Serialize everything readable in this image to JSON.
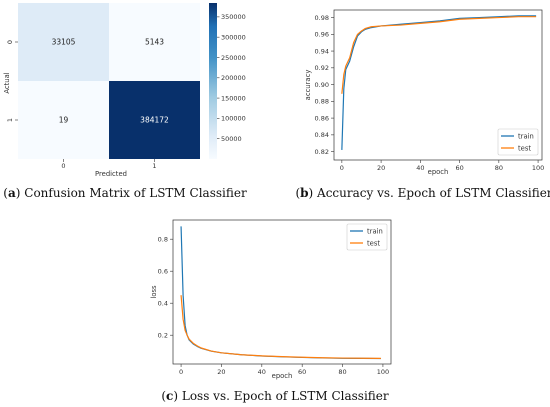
{
  "colors": {
    "heat_light": "#f7fbff",
    "heat_mid1": "#deebf7",
    "heat_mid2": "#6baed6",
    "heat_dark": "#08306b",
    "train": "#1f77b4",
    "test": "#ff7f0e"
  },
  "chart_data": [
    {
      "type": "heatmap",
      "caption": {
        "tag": "a",
        "text": "Confusion Matrix of LSTM Classifier"
      },
      "xlabel": "Predicted",
      "ylabel": "Actual",
      "x_categories": [
        "0",
        "1"
      ],
      "y_categories": [
        "0",
        "1"
      ],
      "values": [
        [
          33105,
          5143
        ],
        [
          19,
          384172
        ]
      ],
      "colorbar": {
        "range": [
          0,
          384172
        ],
        "ticks": [
          50000,
          100000,
          150000,
          200000,
          250000,
          300000,
          350000
        ]
      }
    },
    {
      "type": "line",
      "caption": {
        "tag": "b",
        "text": "Accuracy vs. Epoch of LSTM Classifier"
      },
      "xlabel": "epoch",
      "ylabel": "accuracy",
      "xlim": [
        -4,
        102
      ],
      "ylim": [
        0.81,
        0.989
      ],
      "xticks": [
        0,
        20,
        40,
        60,
        80,
        100
      ],
      "yticks": [
        0.82,
        0.84,
        0.86,
        0.88,
        0.9,
        0.92,
        0.94,
        0.96,
        0.98
      ],
      "ytick_labels": [
        "0.82",
        "0.84",
        "0.86",
        "0.88",
        "0.90",
        "0.92",
        "0.94",
        "0.96",
        "0.98"
      ],
      "legend_position": "bottom-right",
      "series": [
        {
          "name": "train",
          "color_key": "train",
          "x": [
            0,
            1,
            2,
            4,
            6,
            8,
            10,
            12,
            15,
            20,
            30,
            40,
            50,
            60,
            70,
            80,
            90,
            99
          ],
          "y": [
            0.822,
            0.895,
            0.918,
            0.928,
            0.945,
            0.958,
            0.963,
            0.966,
            0.968,
            0.97,
            0.972,
            0.974,
            0.976,
            0.979,
            0.98,
            0.981,
            0.982,
            0.982
          ]
        },
        {
          "name": "test",
          "color_key": "test",
          "x": [
            0,
            1,
            2,
            4,
            6,
            8,
            10,
            12,
            15,
            20,
            30,
            40,
            50,
            60,
            70,
            80,
            90,
            99
          ],
          "y": [
            0.889,
            0.912,
            0.922,
            0.932,
            0.95,
            0.96,
            0.964,
            0.967,
            0.969,
            0.97,
            0.971,
            0.973,
            0.975,
            0.978,
            0.979,
            0.98,
            0.981,
            0.981
          ]
        }
      ]
    },
    {
      "type": "line",
      "caption": {
        "tag": "c",
        "text": "Loss vs. Epoch of LSTM Classifier"
      },
      "xlabel": "epoch",
      "ylabel": "loss",
      "xlim": [
        -4,
        104
      ],
      "ylim": [
        0.02,
        0.92
      ],
      "xticks": [
        0,
        20,
        40,
        60,
        80,
        100
      ],
      "yticks": [
        0.2,
        0.4,
        0.6,
        0.8
      ],
      "ytick_labels": [
        "0.2",
        "0.4",
        "0.6",
        "0.8"
      ],
      "legend_position": "top-right",
      "series": [
        {
          "name": "train",
          "color_key": "train",
          "x": [
            0,
            1,
            2,
            3,
            4,
            6,
            8,
            10,
            15,
            20,
            30,
            40,
            50,
            60,
            70,
            80,
            90,
            99
          ],
          "y": [
            0.88,
            0.45,
            0.26,
            0.2,
            0.17,
            0.145,
            0.13,
            0.118,
            0.1,
            0.09,
            0.078,
            0.07,
            0.065,
            0.061,
            0.058,
            0.056,
            0.055,
            0.054
          ]
        },
        {
          "name": "test",
          "color_key": "test",
          "x": [
            0,
            1,
            2,
            3,
            4,
            6,
            8,
            10,
            15,
            20,
            30,
            40,
            50,
            60,
            70,
            80,
            90,
            99
          ],
          "y": [
            0.45,
            0.3,
            0.23,
            0.2,
            0.175,
            0.15,
            0.133,
            0.12,
            0.101,
            0.09,
            0.078,
            0.071,
            0.066,
            0.062,
            0.059,
            0.057,
            0.056,
            0.055
          ]
        }
      ]
    }
  ]
}
